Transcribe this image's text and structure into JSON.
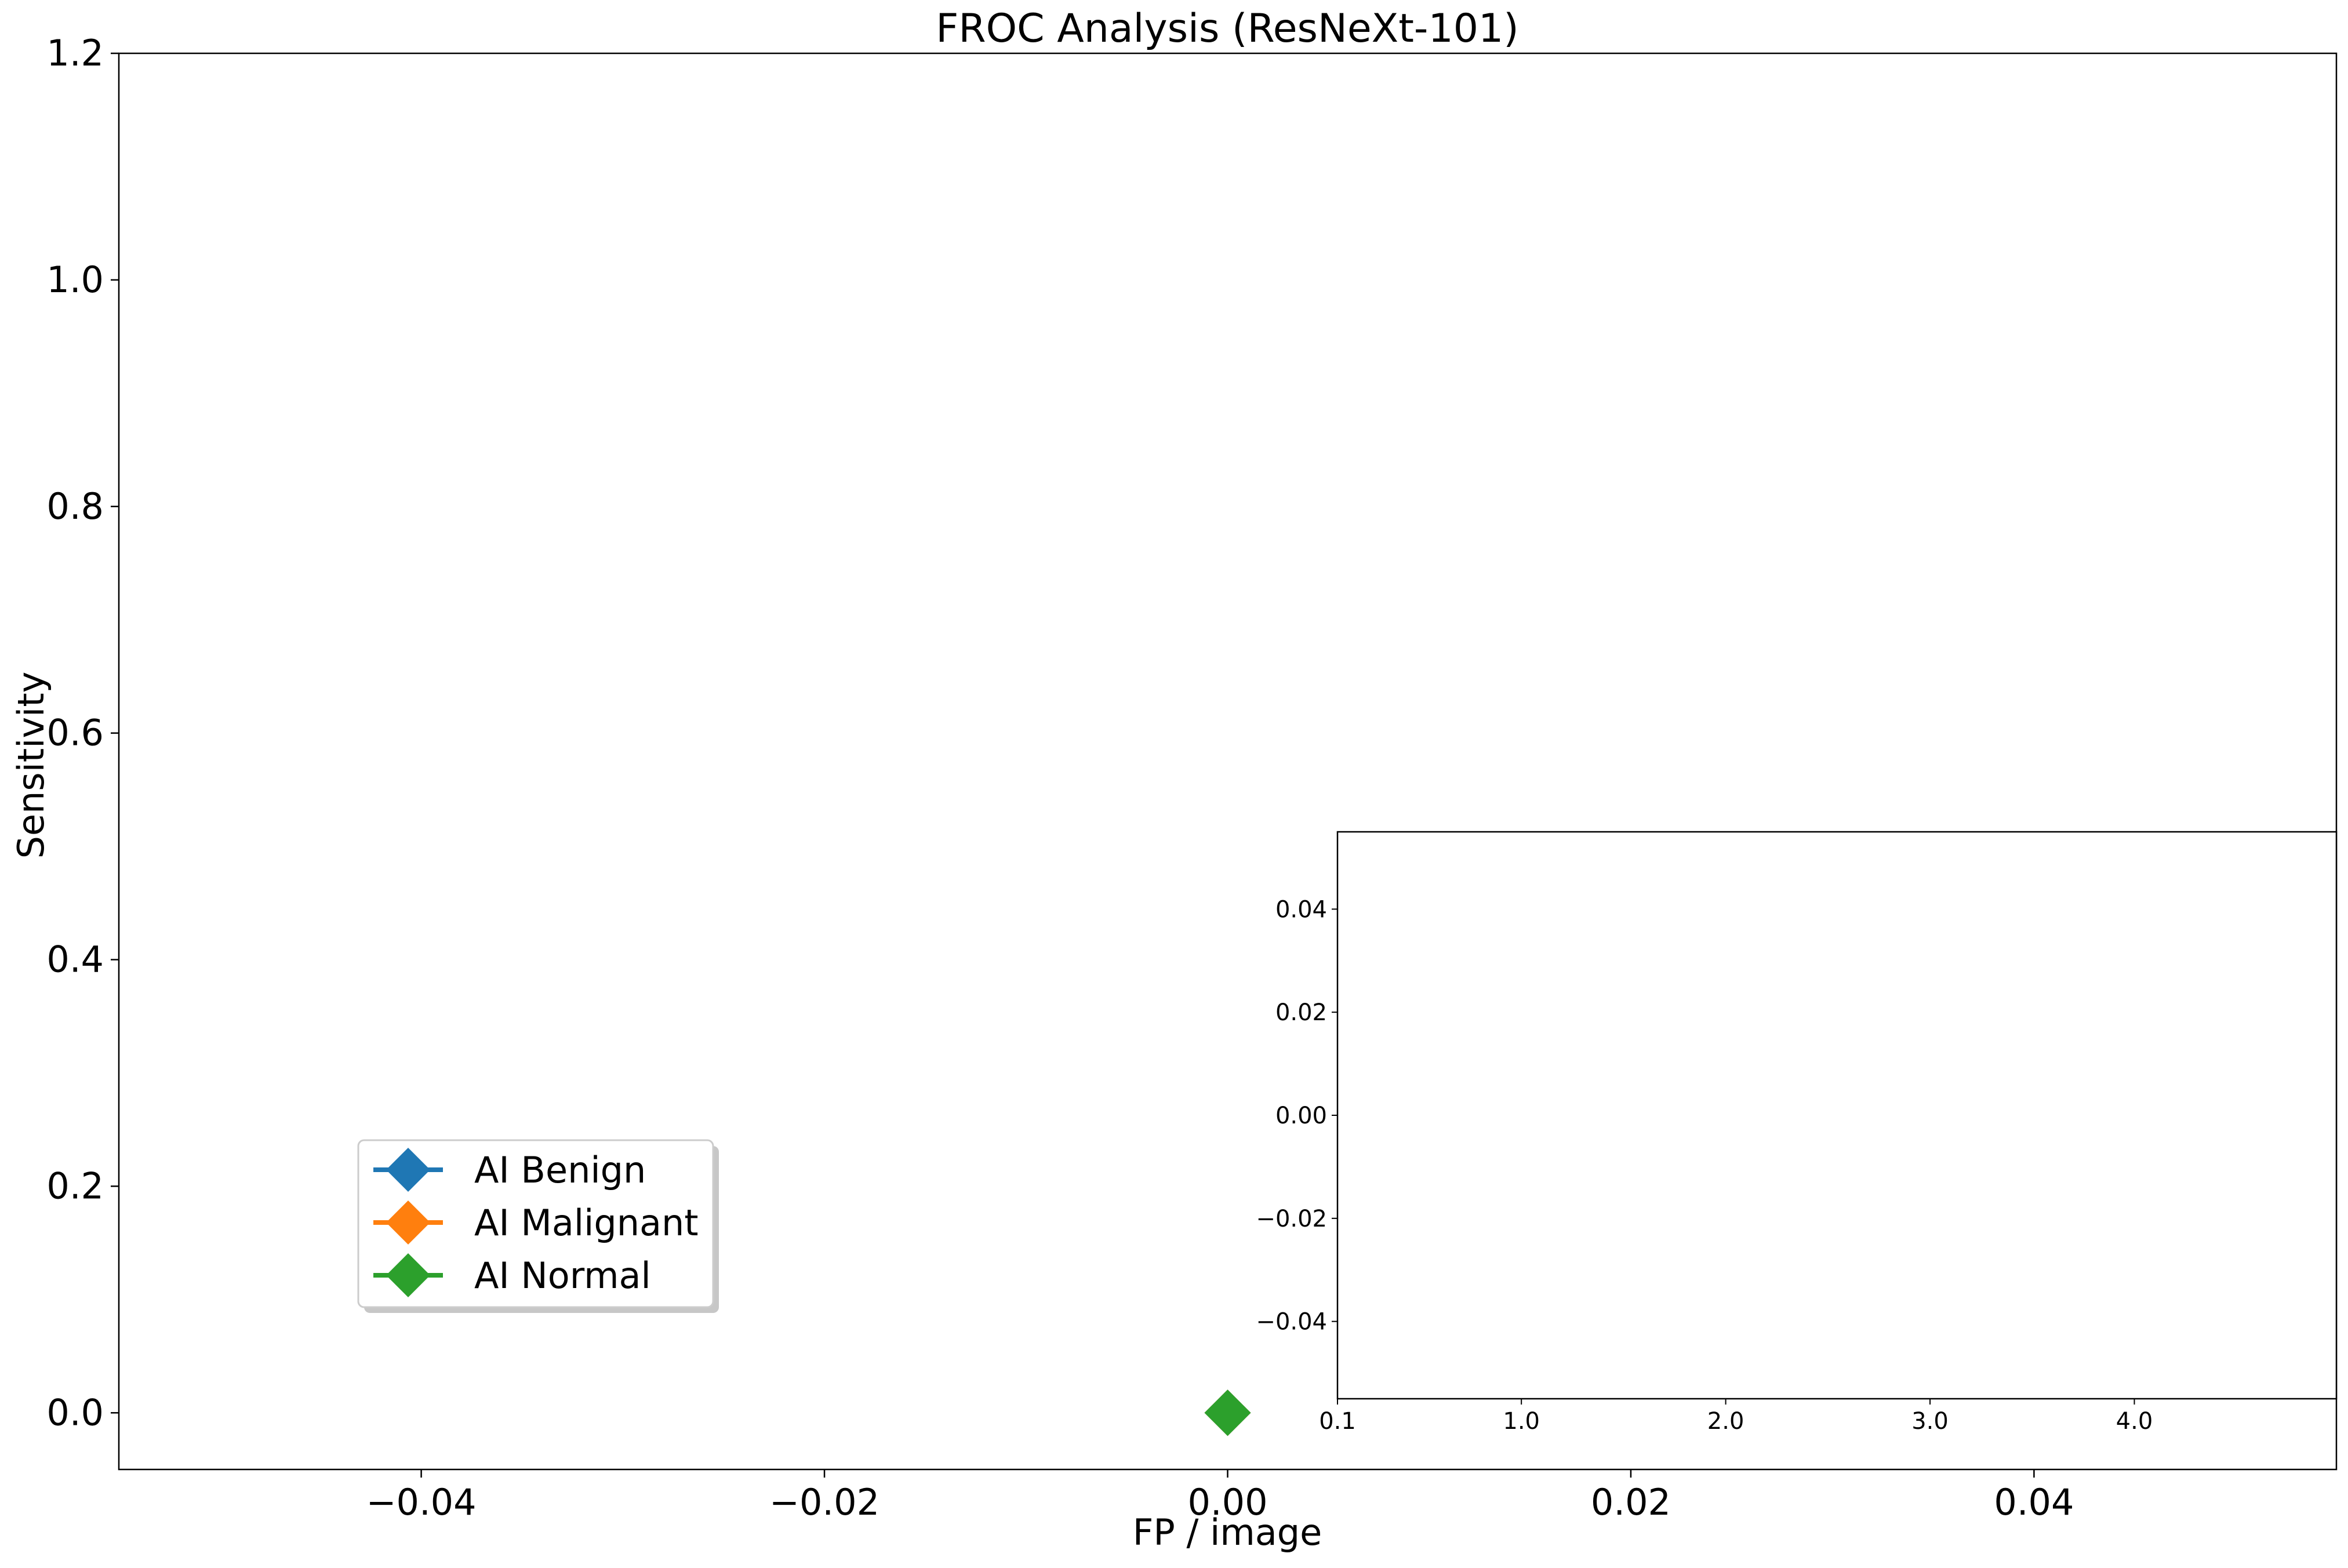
{
  "chart_data": [
    {
      "type": "line",
      "title": "FROC Analysis (ResNeXt-101)",
      "xlabel": "FP / image",
      "ylabel": "Sensitivity",
      "xlim": [
        -0.055,
        0.055
      ],
      "ylim": [
        -0.05,
        1.2
      ],
      "xticks": [
        -0.04,
        -0.02,
        0.0,
        0.02,
        0.04
      ],
      "xtick_labels": [
        "−0.04",
        "−0.02",
        "0.00",
        "0.02",
        "0.04"
      ],
      "yticks": [
        0.0,
        0.2,
        0.4,
        0.6,
        0.8,
        1.0,
        1.2
      ],
      "ytick_labels": [
        "0.0",
        "0.2",
        "0.4",
        "0.6",
        "0.8",
        "1.0",
        "1.2"
      ],
      "grid": false,
      "legend_position": "lower-left",
      "marker": "diamond",
      "series": [
        {
          "name": "AI Benign",
          "color": "#1f77b4",
          "x": [
            0.0
          ],
          "y": [
            0.0
          ]
        },
        {
          "name": "AI Malignant",
          "color": "#ff7f0e",
          "x": [
            0.0
          ],
          "y": [
            0.0
          ]
        },
        {
          "name": "AI Normal",
          "color": "#2ca02c",
          "x": [
            0.0
          ],
          "y": [
            0.0
          ]
        }
      ]
    },
    {
      "type": "line",
      "title": "",
      "xlabel": "",
      "ylabel": "",
      "xlim": [
        0.1,
        4.5
      ],
      "ylim": [
        -0.055,
        0.055
      ],
      "xticks": [
        0.1,
        1.0,
        2.0,
        3.0,
        4.0
      ],
      "xtick_labels": [
        "0.1",
        "1.0",
        "2.0",
        "3.0",
        "4.0"
      ],
      "yticks": [
        -0.04,
        -0.02,
        0.0,
        0.02,
        0.04
      ],
      "ytick_labels": [
        "−0.04",
        "−0.02",
        "0.00",
        "0.02",
        "0.04"
      ],
      "grid": false,
      "series": []
    }
  ]
}
